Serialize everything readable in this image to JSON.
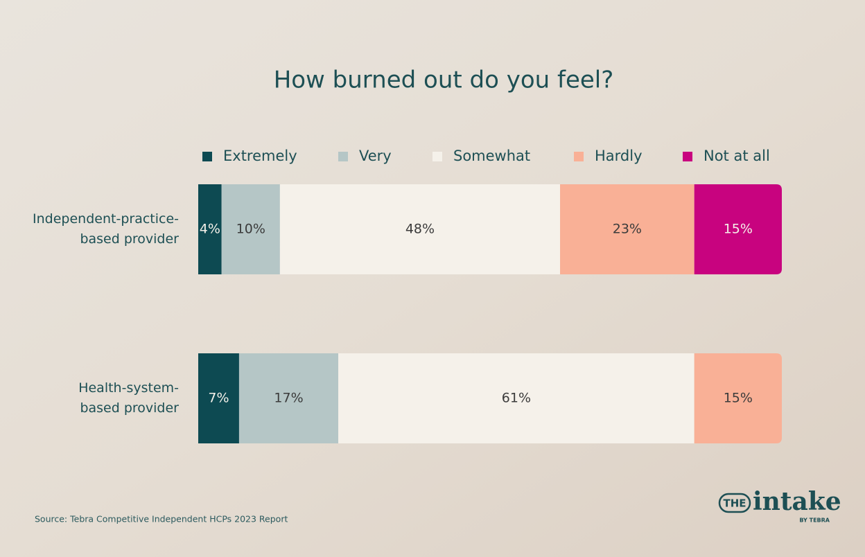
{
  "chart_data": {
    "type": "stacked_hbar",
    "title": "How burned out do you feel?",
    "categories": [
      "Independent-practice-\nbased provider",
      "Health-system-\nbased provider"
    ],
    "series": [
      {
        "name": "Extremely",
        "color": "#0d4a52",
        "values": [
          4,
          7
        ],
        "value_labels": [
          "4%",
          "7%"
        ]
      },
      {
        "name": "Very",
        "color": "#b5c6c6",
        "values": [
          10,
          17
        ],
        "value_labels": [
          "10%",
          "17%"
        ]
      },
      {
        "name": "Somewhat",
        "color": "#f5f1ea",
        "values": [
          48,
          61
        ],
        "value_labels": [
          "48%",
          "61%"
        ]
      },
      {
        "name": "Hardly",
        "color": "#f9b096",
        "values": [
          23,
          15
        ],
        "value_labels": [
          "23%",
          "15%"
        ]
      },
      {
        "name": "Not at all",
        "color": "#c8037f",
        "values": [
          15,
          null
        ],
        "value_labels": [
          "15%",
          null
        ]
      }
    ],
    "xlim": [
      0,
      100
    ],
    "legend": "top",
    "source": "Source: Tebra Competitive Independent HCPs 2023 Report"
  },
  "logo": {
    "mark": "THE",
    "name": "intake",
    "by": "BY TEBRA"
  }
}
